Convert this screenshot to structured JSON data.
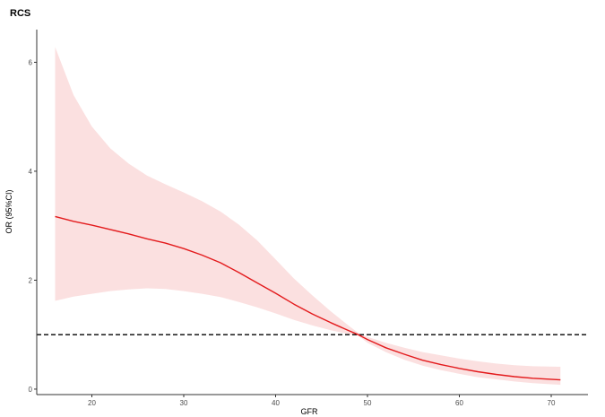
{
  "chart_data": {
    "type": "line",
    "title": "RCS",
    "xlabel": "GFR",
    "ylabel": "OR (95%CI)",
    "xlim": [
      14,
      74
    ],
    "ylim": [
      -0.1,
      6.6
    ],
    "x_ticks": [
      20,
      30,
      40,
      50,
      60,
      70
    ],
    "y_ticks": [
      0,
      2,
      4,
      6
    ],
    "grid": false,
    "reference_line": {
      "y": 1,
      "style": "dashed",
      "color": "#000000"
    },
    "colors": {
      "line": "#e31a1c",
      "band": "#f9d6d6",
      "background": "#ffffff"
    },
    "series": [
      {
        "x": [
          16,
          18,
          20,
          22,
          24,
          26,
          28,
          30,
          32,
          34,
          36,
          38,
          40,
          42,
          44,
          46,
          48,
          49,
          50,
          52,
          54,
          56,
          58,
          60,
          62,
          64,
          66,
          68,
          71
        ],
        "y": [
          3.17,
          3.08,
          3.01,
          2.93,
          2.85,
          2.76,
          2.68,
          2.58,
          2.46,
          2.32,
          2.14,
          1.95,
          1.76,
          1.56,
          1.38,
          1.22,
          1.07,
          1.0,
          0.91,
          0.76,
          0.64,
          0.53,
          0.45,
          0.38,
          0.32,
          0.27,
          0.23,
          0.2,
          0.17
        ],
        "lower": [
          1.62,
          1.7,
          1.75,
          1.8,
          1.83,
          1.85,
          1.84,
          1.8,
          1.75,
          1.69,
          1.6,
          1.5,
          1.39,
          1.27,
          1.17,
          1.08,
          1.01,
          0.98,
          0.85,
          0.68,
          0.54,
          0.43,
          0.35,
          0.28,
          0.22,
          0.18,
          0.14,
          0.11,
          0.08
        ],
        "upper": [
          6.28,
          5.4,
          4.82,
          4.42,
          4.14,
          3.92,
          3.76,
          3.61,
          3.45,
          3.26,
          3.02,
          2.73,
          2.38,
          2.03,
          1.72,
          1.43,
          1.16,
          1.03,
          0.96,
          0.85,
          0.76,
          0.68,
          0.62,
          0.56,
          0.51,
          0.47,
          0.44,
          0.42,
          0.41
        ]
      }
    ]
  }
}
